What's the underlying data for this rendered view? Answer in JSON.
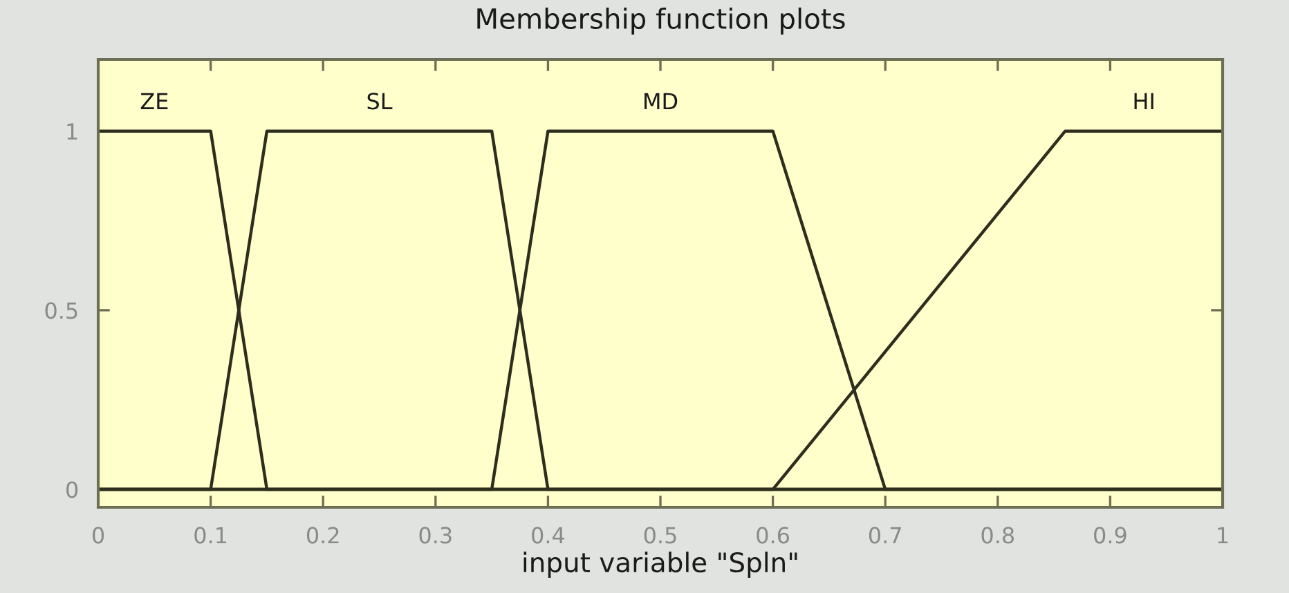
{
  "chart_data": {
    "type": "line",
    "title": "Membership function plots",
    "xlabel": "input variable \"Spln\"",
    "xlim": [
      0,
      1
    ],
    "xticks": [
      0,
      0.1,
      0.2,
      0.3,
      0.4,
      0.5,
      0.6,
      0.7,
      0.8,
      0.9,
      1
    ],
    "ylim": [
      -0.05,
      1.2
    ],
    "yticks": [
      0,
      0.5,
      1
    ],
    "grid": false,
    "legend": false,
    "marker": "none",
    "line_style": "solid",
    "series": [
      {
        "name": "ZE",
        "color": "#2e2e1e",
        "x": [
          0,
          0.1,
          0.15,
          1
        ],
        "values": [
          1,
          1,
          0,
          0
        ]
      },
      {
        "name": "SL",
        "color": "#2e2e1e",
        "x": [
          0,
          0.1,
          0.15,
          0.35,
          0.4,
          1
        ],
        "values": [
          0,
          0,
          1,
          1,
          0,
          0
        ]
      },
      {
        "name": "MD",
        "color": "#2e2e1e",
        "x": [
          0,
          0.35,
          0.4,
          0.6,
          0.7,
          1
        ],
        "values": [
          0,
          0,
          1,
          1,
          0,
          0
        ]
      },
      {
        "name": "HI",
        "color": "#2e2e1e",
        "x": [
          0,
          0.6,
          0.86,
          1
        ],
        "values": [
          0,
          0,
          1,
          1
        ]
      }
    ]
  }
}
